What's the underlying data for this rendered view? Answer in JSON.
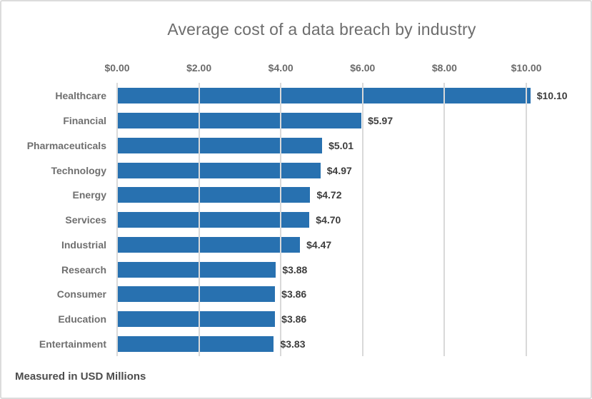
{
  "page": {
    "background": "#ffffff",
    "frame_border_color": "#dcdcdc"
  },
  "chart_data": {
    "type": "bar",
    "orientation": "horizontal",
    "title": "Average cost of a data breach by industry",
    "note": "Measured in USD Millions",
    "categories": [
      "Healthcare",
      "Financial",
      "Pharmaceuticals",
      "Technology",
      "Energy",
      "Services",
      "Industrial",
      "Research",
      "Consumer",
      "Education",
      "Entertainment"
    ],
    "values": [
      10.1,
      5.97,
      5.01,
      4.97,
      4.72,
      4.7,
      4.47,
      3.88,
      3.86,
      3.86,
      3.83
    ],
    "value_labels": [
      "$10.10",
      "$5.97",
      "$5.01",
      "$4.97",
      "$4.72",
      "$4.70",
      "$4.47",
      "$3.88",
      "$3.86",
      "$3.86",
      "$3.83"
    ],
    "xlim": [
      0,
      10
    ],
    "x_ticks": [
      0,
      2,
      4,
      6,
      8,
      10
    ],
    "x_tick_labels": [
      "$0.00",
      "$2.00",
      "$4.00",
      "$6.00",
      "$8.00",
      "$10.00"
    ],
    "grid": true,
    "legend": false,
    "bar_color": "#2871b0",
    "gridline_color": "#d9d9d9",
    "title_color": "#6d6d6d",
    "category_label_color": "#6f6f6f",
    "value_label_color": "#3d3d3d",
    "tick_label_color": "#6b6b6b",
    "note_color": "#4d4d4d"
  }
}
